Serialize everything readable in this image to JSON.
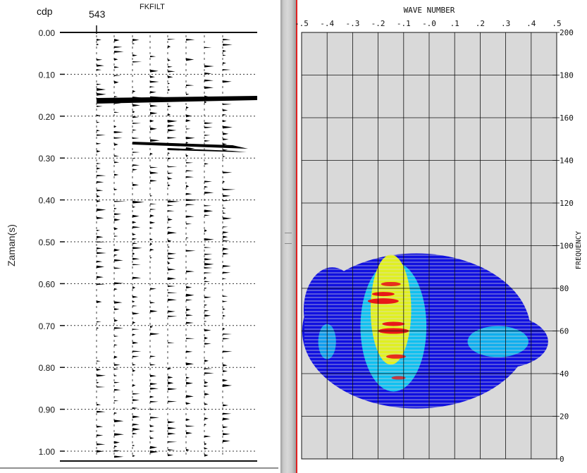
{
  "seismic": {
    "cdp_label": "cdp",
    "trace_number": "543",
    "title": "FKFILT",
    "ylabel": "Zaman(s)",
    "time_ticks": [
      "0.00",
      "0.10",
      "0.20",
      "0.30",
      "0.40",
      "0.50",
      "0.60",
      "0.70",
      "0.80",
      "0.90",
      "1.00"
    ]
  },
  "chart_data": {
    "type": "heatmap",
    "xlabel": "WAVE NUMBER",
    "ylabel": "FREQUENCY",
    "x_ticks": [
      ".5",
      ".4",
      ".3",
      ".2",
      ".1",
      ".0",
      ".1",
      ".2",
      ".3",
      ".4",
      ".5"
    ],
    "x_tick_signs": [
      "-",
      "-",
      "-",
      "-",
      "-",
      "-",
      "",
      "",
      "",
      "",
      ""
    ],
    "y_ticks": [
      "0",
      "20",
      "40",
      "60",
      "80",
      "100",
      "120",
      "140",
      "160",
      "180",
      "200"
    ],
    "xlim": [
      -0.5,
      0.5
    ],
    "ylim": [
      0,
      200
    ],
    "grid": true,
    "background": "#d9d9d9",
    "colors": {
      "low": "#1010e0",
      "mid": "#10c0f0",
      "high": "#e0f020",
      "peak": "#e81818"
    },
    "energy": [
      {
        "kx": -0.18,
        "f": 74,
        "level": 4
      },
      {
        "kx": -0.14,
        "f": 60,
        "level": 4
      },
      {
        "kx": -0.15,
        "f": 82,
        "level": 3
      },
      {
        "kx": -0.13,
        "f": 48,
        "level": 3
      },
      {
        "kx": -0.12,
        "f": 38,
        "level": 2
      }
    ]
  }
}
